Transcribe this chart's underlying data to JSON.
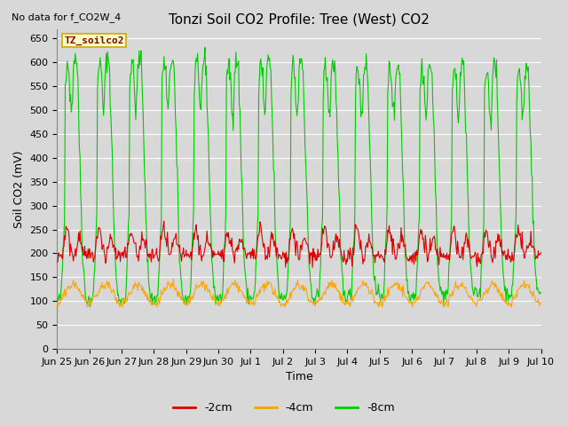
{
  "title": "Tonzi Soil CO2 Profile: Tree (West) CO2",
  "subtitle": "No data for f_CO2W_4",
  "ylabel": "Soil CO2 (mV)",
  "xlabel": "Time",
  "legend_label": "TZ_soilco2",
  "series_labels": [
    "-2cm",
    "-4cm",
    "-8cm"
  ],
  "series_colors": [
    "#dd0000",
    "#ffa500",
    "#00cc00"
  ],
  "ylim": [
    0,
    670
  ],
  "yticks": [
    0,
    50,
    100,
    150,
    200,
    250,
    300,
    350,
    400,
    450,
    500,
    550,
    600,
    650
  ],
  "background_color": "#d8d8d8",
  "plot_bg_color": "#d8d8d8",
  "grid_color": "#ffffff",
  "legend_box_color": "#ffffcc",
  "legend_box_edge": "#ccaa00",
  "title_fontsize": 11,
  "label_fontsize": 9,
  "tick_fontsize": 8
}
